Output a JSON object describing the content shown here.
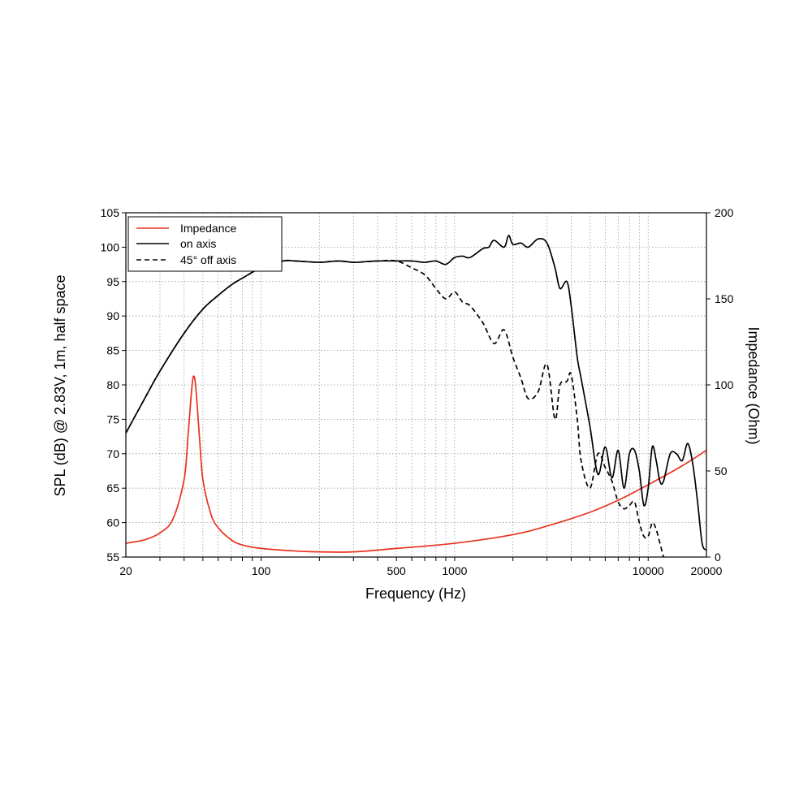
{
  "chart_data": {
    "type": "line",
    "title": "",
    "xlabel": "Frequency (Hz)",
    "ylabel": "SPL (dB) @ 2.83V, 1m, half space",
    "y2label": "Impedance (Ohm)",
    "x_scale": "log",
    "xlim": [
      20,
      20000
    ],
    "ylim": [
      55,
      105
    ],
    "y2lim": [
      0,
      200
    ],
    "grid": true,
    "legend_position": "top-left",
    "x_tick_labels": [
      "20",
      "100",
      "500",
      "1000",
      "10000",
      "20000"
    ],
    "x_tick_values": [
      20,
      100,
      500,
      1000,
      10000,
      20000
    ],
    "y_ticks": [
      "55",
      "60",
      "65",
      "70",
      "75",
      "80",
      "85",
      "90",
      "95",
      "100",
      "105"
    ],
    "y2_ticks": [
      "0",
      "50",
      "100",
      "150",
      "200"
    ],
    "series": [
      {
        "name": "Impedance",
        "axis": "y2",
        "color": "#e8321e",
        "dash": "solid",
        "x": [
          20,
          25,
          30,
          35,
          40,
          42,
          44,
          45,
          46,
          48,
          50,
          55,
          60,
          70,
          80,
          100,
          150,
          200,
          300,
          500,
          1000,
          2000,
          3000,
          5000,
          7000,
          10000,
          15000,
          20000
        ],
        "y": [
          8,
          10,
          14,
          22,
          45,
          72,
          100,
          105,
          98,
          70,
          45,
          25,
          17,
          10,
          7,
          5,
          3.5,
          3,
          3,
          5,
          8,
          13,
          18,
          26,
          33,
          42,
          53,
          62
        ]
      },
      {
        "name": "on axis",
        "axis": "y",
        "color": "#000000",
        "dash": "solid",
        "x": [
          20,
          25,
          30,
          40,
          50,
          60,
          70,
          80,
          100,
          130,
          150,
          200,
          250,
          300,
          350,
          400,
          500,
          600,
          700,
          800,
          900,
          1000,
          1100,
          1200,
          1400,
          1500,
          1600,
          1800,
          1900,
          2000,
          2200,
          2400,
          2700,
          3000,
          3300,
          3500,
          3800,
          4000,
          4300,
          4500,
          5000,
          5500,
          6000,
          6500,
          7000,
          7500,
          8000,
          8500,
          9000,
          9500,
          10000,
          10500,
          11000,
          11500,
          12000,
          13000,
          14000,
          15000,
          16000,
          17000,
          18000,
          19000,
          20000
        ],
        "y": [
          73,
          78,
          82,
          87.5,
          91,
          93,
          94.5,
          95.5,
          97,
          98,
          98,
          97.8,
          98,
          97.8,
          97.9,
          98,
          98,
          98,
          97.8,
          98,
          97.5,
          98.5,
          98.7,
          98.5,
          99.8,
          100,
          101,
          100,
          101.7,
          100.4,
          100.6,
          100,
          101.2,
          100.6,
          97,
          94,
          95,
          91.5,
          84,
          81,
          74,
          67,
          71,
          66.5,
          70.5,
          65,
          70,
          70.5,
          67.5,
          62.5,
          65,
          71,
          69,
          66,
          66,
          70,
          70,
          69,
          71.5,
          68.5,
          63,
          57,
          56
        ]
      },
      {
        "name": "45° off axis",
        "axis": "y",
        "color": "#000000",
        "dash": "dashed",
        "x": [
          20,
          25,
          30,
          40,
          50,
          60,
          70,
          80,
          100,
          130,
          150,
          200,
          250,
          300,
          350,
          400,
          500,
          600,
          700,
          800,
          900,
          1000,
          1100,
          1200,
          1400,
          1600,
          1800,
          2000,
          2200,
          2400,
          2700,
          3000,
          3300,
          3500,
          3800,
          4000,
          4300,
          4500,
          5000,
          5500,
          6000,
          6500,
          7000,
          7500,
          8000,
          8500,
          9000,
          9500,
          10000,
          10500,
          11000,
          11500,
          12000
        ],
        "y": [
          73,
          78,
          82,
          87.5,
          91,
          93,
          94.5,
          95.5,
          97,
          98,
          98,
          97.8,
          98,
          97.8,
          97.9,
          98,
          98,
          97,
          96,
          94,
          92.5,
          93.5,
          92,
          91.5,
          89,
          86,
          88,
          84,
          81,
          78,
          79,
          83,
          75,
          80,
          80.5,
          81.5,
          75,
          69,
          65,
          70,
          68,
          66,
          63,
          62,
          62.5,
          63,
          60,
          58,
          58,
          60,
          59,
          57,
          55
        ]
      }
    ]
  }
}
